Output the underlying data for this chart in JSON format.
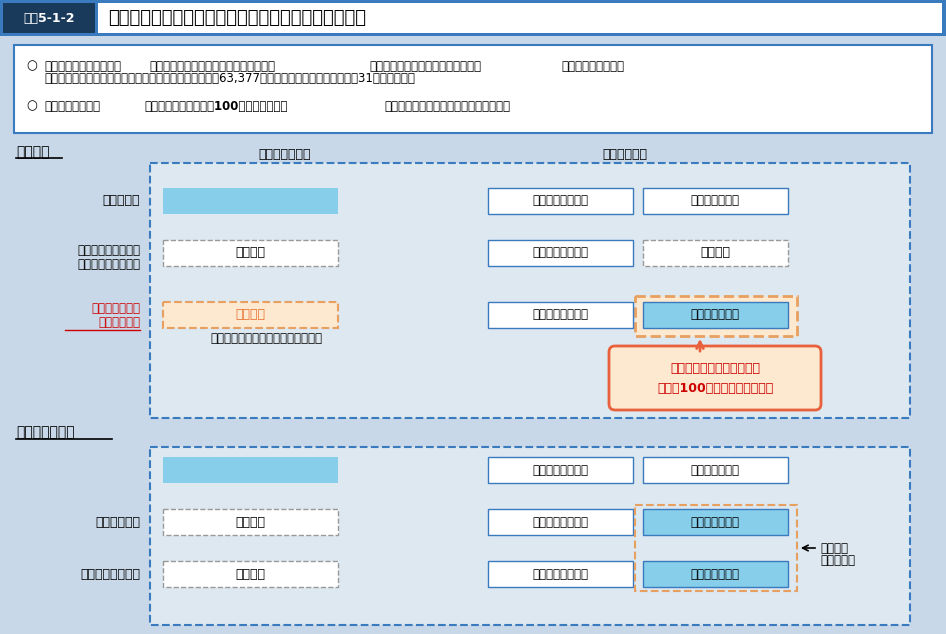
{
  "title_box_label": "図表5-1-2",
  "title_text": "国民年金第１号被保険者の産前産後期間の保険料免除",
  "bg_color": "#c8d8e8",
  "title_bg_color": "#3a7abf",
  "title_label_bg": "#1a3a5c",
  "bullet_line1a": "次世代育成支援のため、",
  "bullet_line1b": "国民年金第１号被保険者の産前産後期間",
  "bullet_line1c": "（出産予定日の前月から４か月間）",
  "bullet_line1d": "の保険料を免除し、",
  "bullet_line2": "　免除期間は満額の基礎年金を保障する。（免除件数：63,377件（令和２年３月末））【平成31年４月施行】",
  "bullet_line3a": "この財源として、",
  "bullet_line3b": "国民年金保険料を月額100円程度引き上げ",
  "bullet_line3c": "、国民年金の被保険者全体で対応する。",
  "section1_title": "国民年金",
  "col_header1": "【保険料負担】",
  "col_header2": "【年金給付】",
  "row1_label": "全額納付者",
  "row2_label1": "【現行の免除制度】",
  "row2_label2": "（全額免除の場合）",
  "row3_label1": "産前産後期間の",
  "row3_label2": "保険料免除者",
  "row3_sublabel": "（世帯所得にかかわらず免除対象）",
  "box_blue_fill": "#87ceeb",
  "box_blue_fill_dark": "#5bb8d4",
  "box_white_fill": "#ffffff",
  "box_orange_fill": "#fde8d0",
  "box_stroke_dashed_orange": "#e8a060",
  "box_stroke_blue": "#3a7abf",
  "box_stroke_gray": "#999999",
  "label_menjyo": "（免除）",
  "label_nashi": "（なし）",
  "label_kokko12": "国庫負担分１／２",
  "label_hoken12": "保険料分１／２",
  "ann_line1": "第１号被保険者全体で負担",
  "ann_line2": "（月額100円程度の追加負担）",
  "annotation_bg": "#fde8d0",
  "annotation_border": "#e8603c",
  "section2_title": "参考：厚生年金",
  "row4_label": "【産休免除】",
  "row5_label": "【３号被保険者】",
  "side_note1": "厚生年金",
  "side_note2": "全体で負担",
  "red_color": "#cc0000",
  "orange_text": "#e87030",
  "dark_blue_text": "#1a3a6c",
  "section1_bg": "#dde8f0",
  "section2_bg": "#dde8f0"
}
